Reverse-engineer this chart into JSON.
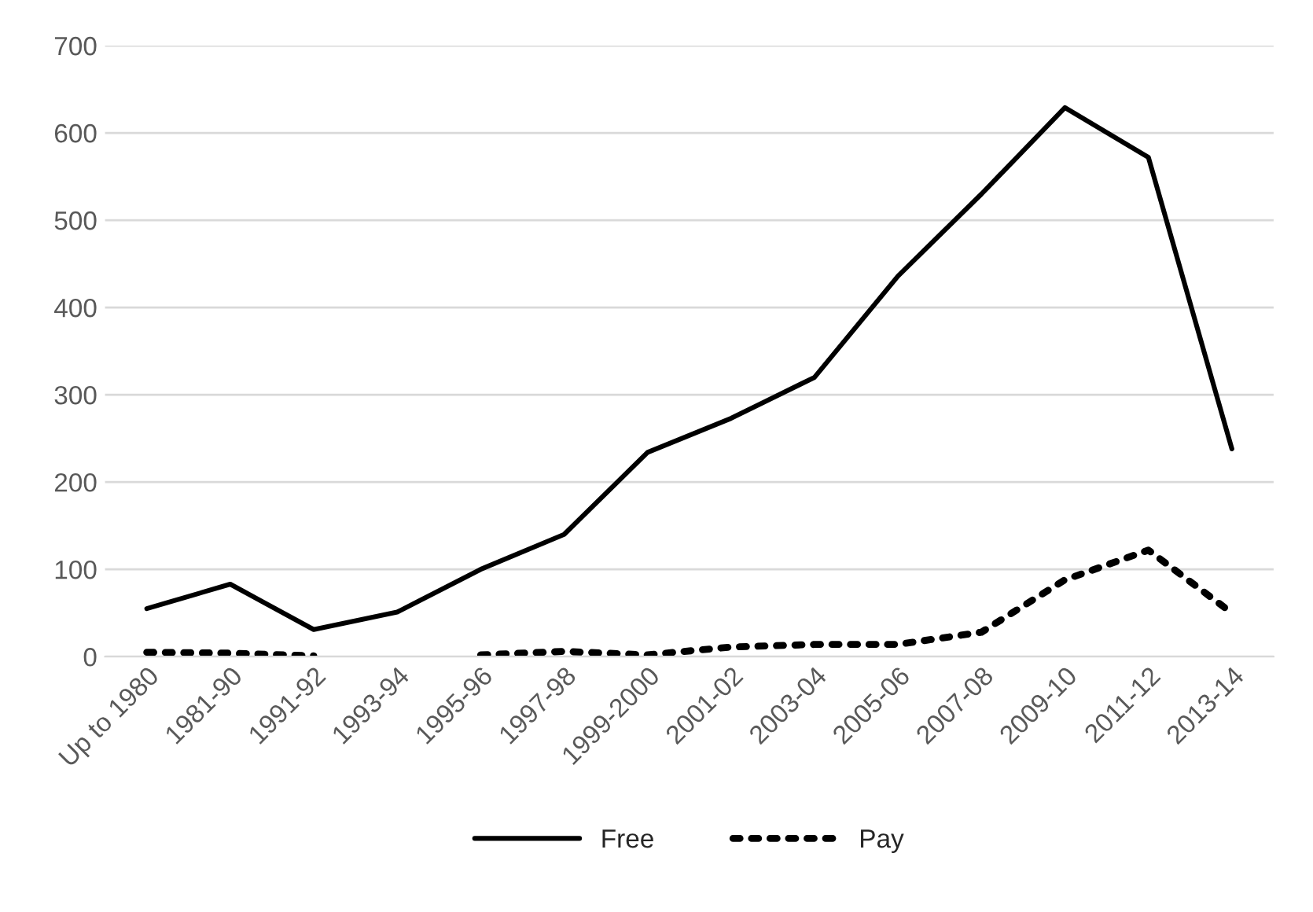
{
  "chart_data": {
    "type": "line",
    "categories": [
      "Up to 1980",
      "1981-90",
      "1991-92",
      "1993-94",
      "1995-96",
      "1997-98",
      "1999-2000",
      "2001-02",
      "2003-04",
      "2005-06",
      "2007-08",
      "2009-10",
      "2011-12",
      "2013-14"
    ],
    "series": [
      {
        "name": "Free",
        "color": "#000000",
        "line_style": "solid",
        "values": [
          55,
          83,
          31,
          51,
          100,
          140,
          234,
          273,
          320,
          436,
          530,
          629,
          572,
          238
        ]
      },
      {
        "name": "Pay",
        "color": "#000000",
        "line_style": "dotted",
        "values": [
          5,
          4,
          1,
          null,
          2,
          6,
          2,
          11,
          14,
          14,
          28,
          88,
          122,
          50
        ]
      }
    ],
    "ylim": [
      0,
      700
    ],
    "yticks": [
      0,
      100,
      200,
      300,
      400,
      500,
      600,
      700
    ],
    "grid": "y",
    "legend": "bottom",
    "marker": "none"
  }
}
